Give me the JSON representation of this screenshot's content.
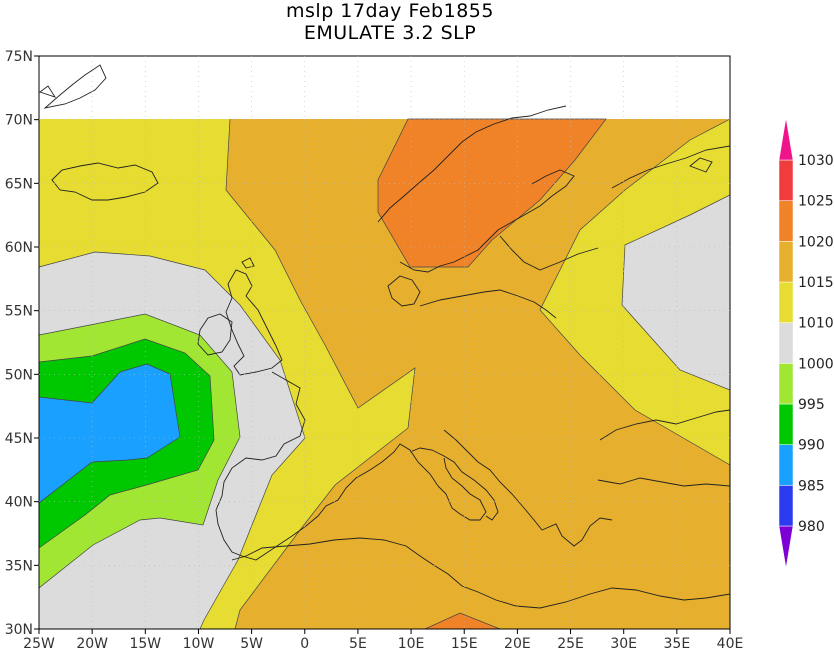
{
  "title": {
    "line1": "mslp 17day Feb1855",
    "line2": "EMULATE 3.2 SLP"
  },
  "map": {
    "lon_labels": [
      "25W",
      "20W",
      "15W",
      "10W",
      "5W",
      "0",
      "5E",
      "10E",
      "15E",
      "20E",
      "25E",
      "30E",
      "35E",
      "40E"
    ],
    "lat_labels": [
      "30N",
      "35N",
      "40N",
      "45N",
      "50N",
      "55N",
      "60N",
      "65N",
      "70N",
      "75N"
    ],
    "lon_range": [
      -25,
      40
    ],
    "lat_range": [
      30,
      75
    ],
    "data_lat_max": 70
  },
  "colorbar": {
    "labels": [
      "980",
      "985",
      "990",
      "995",
      "1000",
      "1010",
      "1015",
      "1020",
      "1025",
      "1030"
    ],
    "colors": [
      "#7d00d4",
      "#2b3cf0",
      "#1aa0ff",
      "#00c800",
      "#a0e632",
      "#dcdcdc",
      "#e6dc32",
      "#e6af2d",
      "#f08228",
      "#f03c3c",
      "#f0148c"
    ]
  },
  "legend_colors": {
    "l1015": "#e6dc32",
    "l1020": "#e6af2d",
    "l1025": "#f08228",
    "l1010": "#dcdcdc",
    "l1000": "#a0e632",
    "l995": "#00c800",
    "l990": "#1aa0ff"
  }
}
